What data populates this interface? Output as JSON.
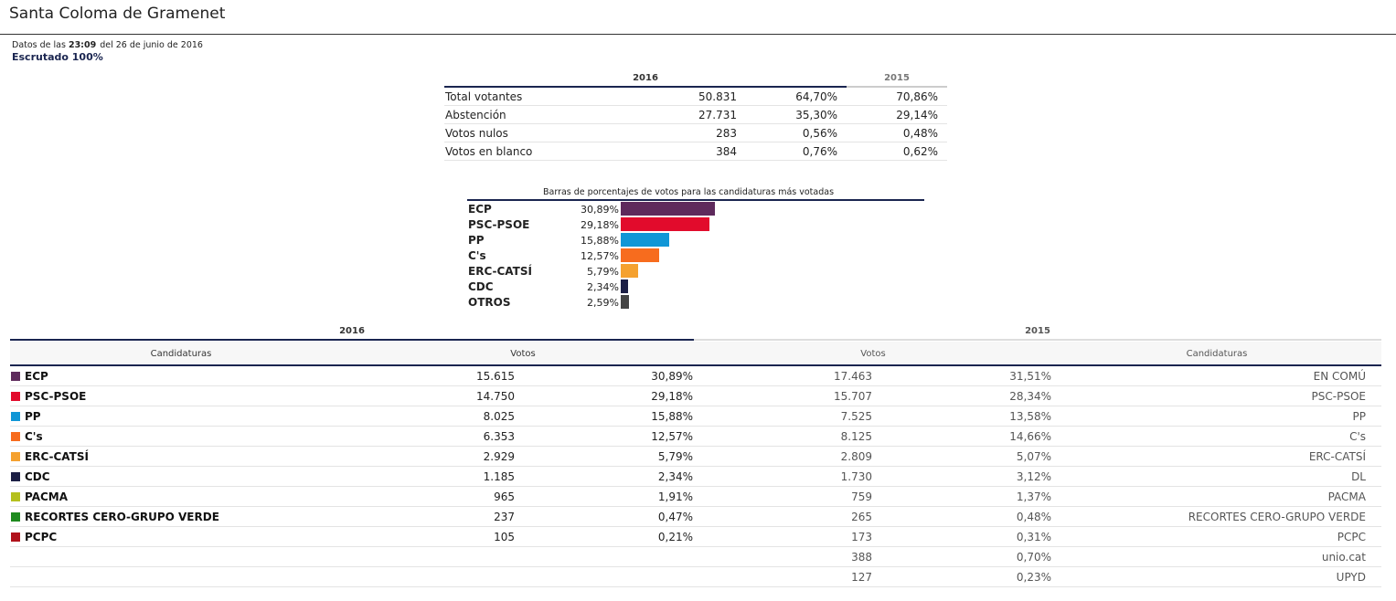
{
  "header": {
    "title": "Santa Coloma de Gramenet",
    "datos_prefix": "Datos de las",
    "time": "23:09",
    "date_text": "del 26 de junio de 2016",
    "escrutado": "Escrutado 100%"
  },
  "summary": {
    "year_current": "2016",
    "year_previous": "2015",
    "rows": [
      {
        "label": "Total votantes",
        "value": "50.831",
        "pct_2016": "64,70%",
        "pct_2015": "70,86%"
      },
      {
        "label": "Abstención",
        "value": "27.731",
        "pct_2016": "35,30%",
        "pct_2015": "29,14%"
      },
      {
        "label": "Votos nulos",
        "value": "283",
        "pct_2016": "0,56%",
        "pct_2015": "0,48%"
      },
      {
        "label": "Votos en blanco",
        "value": "384",
        "pct_2016": "0,76%",
        "pct_2015": "0,62%"
      }
    ]
  },
  "chart_data": {
    "type": "bar",
    "title": "Barras de porcentajes de votos para las candidaturas más votadas",
    "categories": [
      "ECP",
      "PSC-PSOE",
      "PP",
      "C's",
      "ERC-CATSÍ",
      "CDC",
      "OTROS"
    ],
    "values": [
      30.89,
      29.18,
      15.88,
      12.57,
      5.79,
      2.34,
      2.59
    ],
    "labels": [
      "30,89%",
      "29,18%",
      "15,88%",
      "12,57%",
      "5,79%",
      "2,34%",
      "2,59%"
    ],
    "colors": [
      "#5e2a5c",
      "#e20b2c",
      "#1096d6",
      "#f76c1e",
      "#f5a12f",
      "#1c1f45",
      "#444444"
    ]
  },
  "results": {
    "year_current": "2016",
    "year_previous": "2015",
    "col_candidaturas": "Candidaturas",
    "col_votos": "Votos",
    "rows": [
      {
        "party": "ECP",
        "color": "#5e2a5c",
        "votes_2016": "15.615",
        "pct_2016": "30,89%",
        "votes_2015": "17.463",
        "pct_2015": "31,51%",
        "party_2015": "EN COMÚ"
      },
      {
        "party": "PSC-PSOE",
        "color": "#e20b2c",
        "votes_2016": "14.750",
        "pct_2016": "29,18%",
        "votes_2015": "15.707",
        "pct_2015": "28,34%",
        "party_2015": "PSC-PSOE"
      },
      {
        "party": "PP",
        "color": "#1096d6",
        "votes_2016": "8.025",
        "pct_2016": "15,88%",
        "votes_2015": "7.525",
        "pct_2015": "13,58%",
        "party_2015": "PP"
      },
      {
        "party": "C's",
        "color": "#f76c1e",
        "votes_2016": "6.353",
        "pct_2016": "12,57%",
        "votes_2015": "8.125",
        "pct_2015": "14,66%",
        "party_2015": "C's"
      },
      {
        "party": "ERC-CATSÍ",
        "color": "#f5a12f",
        "votes_2016": "2.929",
        "pct_2016": "5,79%",
        "votes_2015": "2.809",
        "pct_2015": "5,07%",
        "party_2015": "ERC-CATSÍ"
      },
      {
        "party": "CDC",
        "color": "#1c1f45",
        "votes_2016": "1.185",
        "pct_2016": "2,34%",
        "votes_2015": "1.730",
        "pct_2015": "3,12%",
        "party_2015": "DL"
      },
      {
        "party": "PACMA",
        "color": "#b5c01e",
        "votes_2016": "965",
        "pct_2016": "1,91%",
        "votes_2015": "759",
        "pct_2015": "1,37%",
        "party_2015": "PACMA"
      },
      {
        "party": "RECORTES CERO-GRUPO VERDE",
        "color": "#1e8a1e",
        "votes_2016": "237",
        "pct_2016": "0,47%",
        "votes_2015": "265",
        "pct_2015": "0,48%",
        "party_2015": "RECORTES CERO-GRUPO VERDE"
      },
      {
        "party": "PCPC",
        "color": "#b0121b",
        "votes_2016": "105",
        "pct_2016": "0,21%",
        "votes_2015": "173",
        "pct_2015": "0,31%",
        "party_2015": "PCPC"
      },
      {
        "party": "",
        "color": "",
        "votes_2016": "",
        "pct_2016": "",
        "votes_2015": "388",
        "pct_2015": "0,70%",
        "party_2015": "unio.cat"
      },
      {
        "party": "",
        "color": "",
        "votes_2016": "",
        "pct_2016": "",
        "votes_2015": "127",
        "pct_2015": "0,23%",
        "party_2015": "UPYD"
      }
    ]
  }
}
